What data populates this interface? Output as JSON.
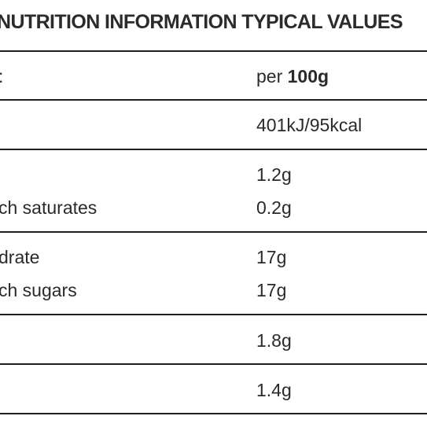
{
  "table": {
    "title": "NUTRITION INFORMATION TYPICAL VALUES",
    "header_label": ":",
    "header_value_prefix": "per",
    "header_value_bold": "100g",
    "rows": [
      {
        "label": "",
        "value": "401kJ/95kcal"
      },
      {
        "label": "",
        "value": "1.2g"
      },
      {
        "label": "ch saturates",
        "value": "0.2g"
      },
      {
        "label": "drate",
        "value": "17g"
      },
      {
        "label": "ch sugars",
        "value": "17g"
      },
      {
        "label": "",
        "value": "1.8g"
      },
      {
        "label": "",
        "value": "1.4g"
      }
    ]
  }
}
